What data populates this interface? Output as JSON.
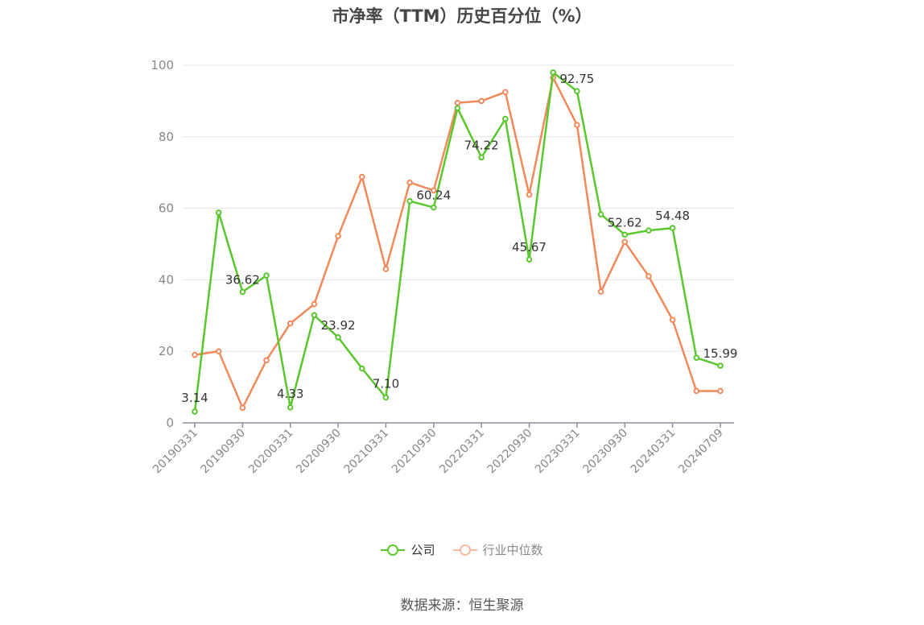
{
  "chart_data": {
    "type": "line",
    "title": "市净率（TTM）历史百分位（%）",
    "source": "数据来源：恒生聚源",
    "ylim": [
      0,
      100
    ],
    "yticks": [
      "0",
      "20",
      "40",
      "60",
      "80",
      "100"
    ],
    "x": [
      "20190331",
      "20190630",
      "20190930",
      "20191231",
      "20200331",
      "20200630",
      "20200930",
      "20201231",
      "20210331",
      "20210630",
      "20210930",
      "20211231",
      "20220331",
      "20220630",
      "20220930",
      "20221231",
      "20230331",
      "20230630",
      "20230930",
      "20231231",
      "20240331",
      "20240630",
      "20240709"
    ],
    "xtick_labels": [
      "20190331",
      "20190930",
      "20200331",
      "20200930",
      "20210331",
      "20210930",
      "20220331",
      "20220930",
      "20230331",
      "20230930",
      "20240331",
      "20240709"
    ],
    "grid": true,
    "legend_position": "bottom",
    "series": [
      {
        "name": "公司",
        "color": "#5ac72c",
        "values": [
          3.14,
          58.8,
          36.62,
          41.2,
          4.33,
          30.1,
          23.92,
          15.2,
          7.1,
          62.0,
          60.24,
          88.0,
          74.22,
          85.0,
          45.67,
          98.0,
          92.75,
          58.3,
          52.62,
          53.8,
          54.48,
          18.2,
          15.99
        ],
        "data_labels": [
          {
            "index": 0,
            "text": "3.14"
          },
          {
            "index": 2,
            "text": "36.62"
          },
          {
            "index": 4,
            "text": "4.33"
          },
          {
            "index": 6,
            "text": "23.92"
          },
          {
            "index": 8,
            "text": "7.10"
          },
          {
            "index": 10,
            "text": "60.24"
          },
          {
            "index": 12,
            "text": "74.22"
          },
          {
            "index": 14,
            "text": "45.67"
          },
          {
            "index": 16,
            "text": "92.75"
          },
          {
            "index": 18,
            "text": "52.62"
          },
          {
            "index": 20,
            "text": "54.48"
          },
          {
            "index": 22,
            "text": "15.99"
          }
        ]
      },
      {
        "name": "行业中位数",
        "color": "#f08a5a",
        "legend_color": "#f7b9a0",
        "values": [
          19.0,
          20.0,
          4.2,
          17.5,
          27.8,
          33.2,
          52.2,
          68.8,
          43.0,
          67.2,
          65.0,
          89.5,
          90.0,
          92.5,
          63.8,
          96.5,
          83.3,
          36.7,
          50.6,
          41.0,
          28.8,
          8.9,
          8.9
        ]
      }
    ]
  }
}
